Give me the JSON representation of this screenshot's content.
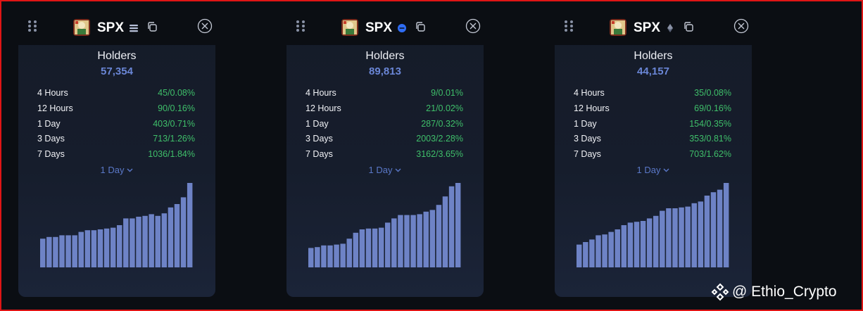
{
  "cards": [
    {
      "symbol": "SPX",
      "chain_icon": "stacked-lines-chain-icon",
      "holders_label": "Holders",
      "holders_value": "57,354",
      "stats": [
        {
          "label": "4 Hours",
          "value": "45/0.08%"
        },
        {
          "label": "12 Hours",
          "value": "90/0.16%"
        },
        {
          "label": "1 Day",
          "value": "403/0.71%"
        },
        {
          "label": "3 Days",
          "value": "713/1.26%"
        },
        {
          "label": "7 Days",
          "value": "1036/1.84%"
        }
      ],
      "period": "1 Day"
    },
    {
      "symbol": "SPX",
      "chain_icon": "blue-circle-chain-icon",
      "holders_label": "Holders",
      "holders_value": "89,813",
      "stats": [
        {
          "label": "4 Hours",
          "value": "9/0.01%"
        },
        {
          "label": "12 Hours",
          "value": "21/0.02%"
        },
        {
          "label": "1 Day",
          "value": "287/0.32%"
        },
        {
          "label": "3 Days",
          "value": "2003/2.28%"
        },
        {
          "label": "7 Days",
          "value": "3162/3.65%"
        }
      ],
      "period": "1 Day"
    },
    {
      "symbol": "SPX",
      "chain_icon": "diamond-chain-icon",
      "holders_label": "Holders",
      "holders_value": "44,157",
      "stats": [
        {
          "label": "4 Hours",
          "value": "35/0.08%"
        },
        {
          "label": "12 Hours",
          "value": "69/0.16%"
        },
        {
          "label": "1 Day",
          "value": "154/0.35%"
        },
        {
          "label": "3 Days",
          "value": "353/0.81%"
        },
        {
          "label": "7 Days",
          "value": "703/1.62%"
        }
      ],
      "period": "1 Day"
    }
  ],
  "chart_data": [
    {
      "type": "bar",
      "values": [
        0.34,
        0.36,
        0.36,
        0.38,
        0.38,
        0.38,
        0.42,
        0.44,
        0.44,
        0.45,
        0.46,
        0.47,
        0.5,
        0.58,
        0.58,
        0.6,
        0.61,
        0.63,
        0.61,
        0.64,
        0.71,
        0.75,
        0.83,
        1.0
      ]
    },
    {
      "type": "bar",
      "values": [
        0.23,
        0.24,
        0.26,
        0.26,
        0.27,
        0.28,
        0.34,
        0.41,
        0.45,
        0.46,
        0.46,
        0.47,
        0.53,
        0.58,
        0.62,
        0.62,
        0.62,
        0.63,
        0.66,
        0.68,
        0.74,
        0.84,
        0.96,
        1.0
      ]
    },
    {
      "type": "bar",
      "values": [
        0.27,
        0.3,
        0.33,
        0.38,
        0.39,
        0.42,
        0.45,
        0.5,
        0.53,
        0.54,
        0.55,
        0.58,
        0.61,
        0.67,
        0.7,
        0.7,
        0.71,
        0.72,
        0.76,
        0.78,
        0.85,
        0.89,
        0.92,
        1.0
      ]
    }
  ],
  "colors": {
    "bar": "#6e83c6",
    "positive": "#3fbf6a",
    "accent": "#6a86d6"
  },
  "watermark": {
    "text": "@ Ethio_Crypto",
    "icon": "binance-square-icon"
  }
}
